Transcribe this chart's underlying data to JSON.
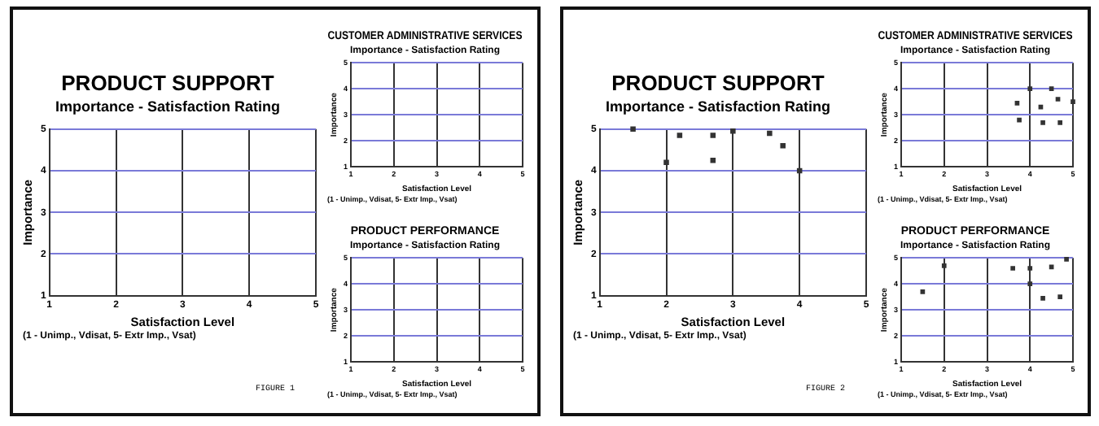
{
  "chart_data": [
    {
      "type": "scatter",
      "title": "PRODUCT SUPPORT",
      "subtitle": "Importance - Satisfaction Rating",
      "xlabel": "Satisfaction Level",
      "ylabel": "Importance",
      "annotations": [
        "(1 - Unimp., Vdisat, 5- Extr Imp., Vsat)",
        "FIGURE 1"
      ],
      "xlim": [
        1,
        5
      ],
      "ylim": [
        1,
        5
      ],
      "xticks": [
        1,
        2,
        3,
        4,
        5
      ],
      "yticks": [
        1,
        2,
        3,
        4,
        5
      ],
      "grid": true,
      "legend": false
    },
    {
      "type": "scatter",
      "title": "CUSTOMER ADMINISTRATIVE SERVICES",
      "subtitle": "Importance - Satisfaction Rating",
      "xlabel": "Satisfaction Level",
      "ylabel": "Importance",
      "annotations": [
        "(1 - Unimp., Vdisat, 5- Extr Imp., Vsat)"
      ],
      "xlim": [
        1,
        5
      ],
      "ylim": [
        1,
        5
      ],
      "xticks": [
        1,
        2,
        3,
        4,
        5
      ],
      "yticks": [
        1,
        2,
        3,
        4,
        5
      ],
      "grid": true,
      "legend": false
    },
    {
      "type": "scatter",
      "title": "PRODUCT PERFORMANCE",
      "subtitle": "Importance - Satisfaction Rating",
      "xlabel": "Satisfaction Level",
      "ylabel": "Importance",
      "annotations": [
        "(1 - Unimp., Vdisat, 5- Extr Imp., Vsat)"
      ],
      "xlim": [
        1,
        5
      ],
      "ylim": [
        1,
        5
      ],
      "xticks": [
        1,
        2,
        3,
        4,
        5
      ],
      "yticks": [
        1,
        2,
        3,
        4,
        5
      ],
      "grid": true,
      "legend": false
    },
    {
      "type": "scatter",
      "title": "PRODUCT SUPPORT",
      "subtitle": "Importance - Satisfaction Rating",
      "xlabel": "Satisfaction Level",
      "ylabel": "Importance",
      "annotations": [
        "(1 - Unimp., Vdisat, 5- Extr Imp., Vsat)",
        "FIGURE 2"
      ],
      "x": [
        1.5,
        2.2,
        2.7,
        3.0,
        3.55,
        3.75,
        2.0,
        2.7,
        4.0
      ],
      "values": [
        5.0,
        4.85,
        4.85,
        4.95,
        4.9,
        4.6,
        4.2,
        4.25,
        4.0
      ],
      "color": "#333333",
      "marker": "square",
      "xlim": [
        1,
        5
      ],
      "ylim": [
        1,
        5
      ],
      "xticks": [
        1,
        2,
        3,
        4,
        5
      ],
      "yticks": [
        1,
        2,
        3,
        4,
        5
      ],
      "grid": true,
      "legend": false
    },
    {
      "type": "scatter",
      "title": "CUSTOMER ADMINISTRATIVE SERVICES",
      "subtitle": "Importance - Satisfaction Rating",
      "xlabel": "Satisfaction Level",
      "ylabel": "Importance",
      "annotations": [
        "(1 - Unimp., Vdisat, 5- Extr Imp., Vsat)"
      ],
      "x": [
        4.0,
        4.5,
        3.7,
        4.25,
        4.65,
        5.0,
        3.75,
        4.3,
        4.7
      ],
      "values": [
        4.0,
        4.0,
        3.45,
        3.3,
        3.6,
        3.5,
        2.8,
        2.7,
        2.7
      ],
      "color": "#333333",
      "marker": "square",
      "xlim": [
        1,
        5
      ],
      "ylim": [
        1,
        5
      ],
      "xticks": [
        1,
        2,
        3,
        4,
        5
      ],
      "yticks": [
        1,
        2,
        3,
        4,
        5
      ],
      "grid": true,
      "legend": false
    },
    {
      "type": "scatter",
      "title": "PRODUCT PERFORMANCE",
      "subtitle": "Importance - Satisfaction Rating",
      "xlabel": "Satisfaction Level",
      "ylabel": "Importance",
      "annotations": [
        "(1 - Unimp., Vdisat, 5- Extr Imp., Vsat)"
      ],
      "x": [
        2.0,
        1.5,
        3.6,
        4.0,
        4.5,
        4.85,
        4.0,
        4.3,
        4.7
      ],
      "values": [
        4.7,
        3.7,
        4.6,
        4.6,
        4.65,
        4.95,
        4.0,
        3.45,
        3.5
      ],
      "color": "#333333",
      "marker": "square",
      "xlim": [
        1,
        5
      ],
      "ylim": [
        1,
        5
      ],
      "xticks": [
        1,
        2,
        3,
        4,
        5
      ],
      "yticks": [
        1,
        2,
        3,
        4,
        5
      ],
      "grid": true,
      "legend": false
    }
  ]
}
